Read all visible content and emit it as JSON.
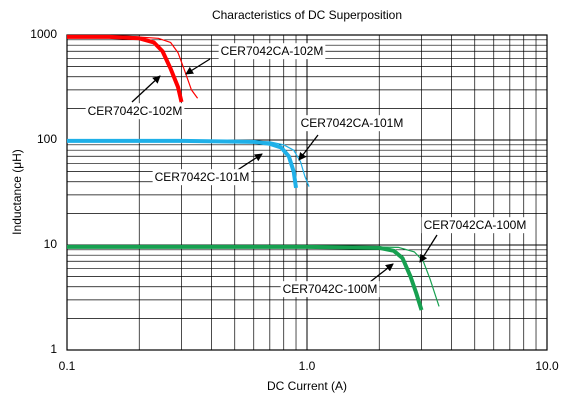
{
  "chart_data": {
    "type": "line",
    "title": "Characteristics of DC Superposition",
    "xlabel": "DC Current (A)",
    "ylabel": "Inductance (μH)",
    "xscale": "log",
    "yscale": "log",
    "grid": true,
    "xlim": [
      0.1,
      10
    ],
    "ylim": [
      1,
      1000
    ],
    "xticks": [
      0.1,
      {
        "value": 1,
        "label": "1.0"
      },
      {
        "value": 10,
        "label": "10.0"
      }
    ],
    "yticks": [
      1,
      10,
      100,
      1000
    ],
    "series": [
      {
        "name": "CER7042C-102M",
        "color": "#ff0000",
        "width": 4,
        "x": [
          0.1,
          0.15,
          0.2,
          0.23,
          0.25,
          0.27,
          0.29,
          0.3
        ],
        "values": [
          960,
          960,
          930,
          850,
          700,
          480,
          320,
          230
        ]
      },
      {
        "name": "CER7042CA-102M",
        "color": "#ff0000",
        "width": 1.2,
        "x": [
          0.1,
          0.18,
          0.24,
          0.27,
          0.29,
          0.31,
          0.33,
          0.35
        ],
        "values": [
          980,
          970,
          930,
          850,
          680,
          450,
          300,
          250
        ]
      },
      {
        "name": "CER7042C-101M",
        "color": "#1fb0e8",
        "width": 4,
        "x": [
          0.1,
          0.3,
          0.6,
          0.7,
          0.78,
          0.84,
          0.88,
          0.9
        ],
        "values": [
          98,
          98,
          96,
          92,
          85,
          70,
          50,
          35
        ]
      },
      {
        "name": "CER7042CA-101M",
        "color": "#1fb0e8",
        "width": 1.2,
        "x": [
          0.1,
          0.4,
          0.7,
          0.8,
          0.88,
          0.94,
          0.98,
          1.02
        ],
        "values": [
          99,
          99,
          96,
          90,
          80,
          62,
          45,
          36
        ]
      },
      {
        "name": "CER7042C-100M",
        "color": "#17a050",
        "width": 4,
        "x": [
          0.1,
          1,
          2,
          2.3,
          2.5,
          2.7,
          2.85,
          3
        ],
        "values": [
          9.6,
          9.6,
          9.4,
          8.8,
          7.5,
          5,
          3.5,
          2.4
        ]
      },
      {
        "name": "CER7042CA-100M",
        "color": "#17a050",
        "width": 1.2,
        "x": [
          0.1,
          1,
          2.4,
          2.8,
          3.05,
          3.25,
          3.4,
          3.55
        ],
        "values": [
          9.7,
          9.7,
          9.5,
          8.6,
          7,
          4.8,
          3.5,
          2.6
        ]
      }
    ]
  }
}
